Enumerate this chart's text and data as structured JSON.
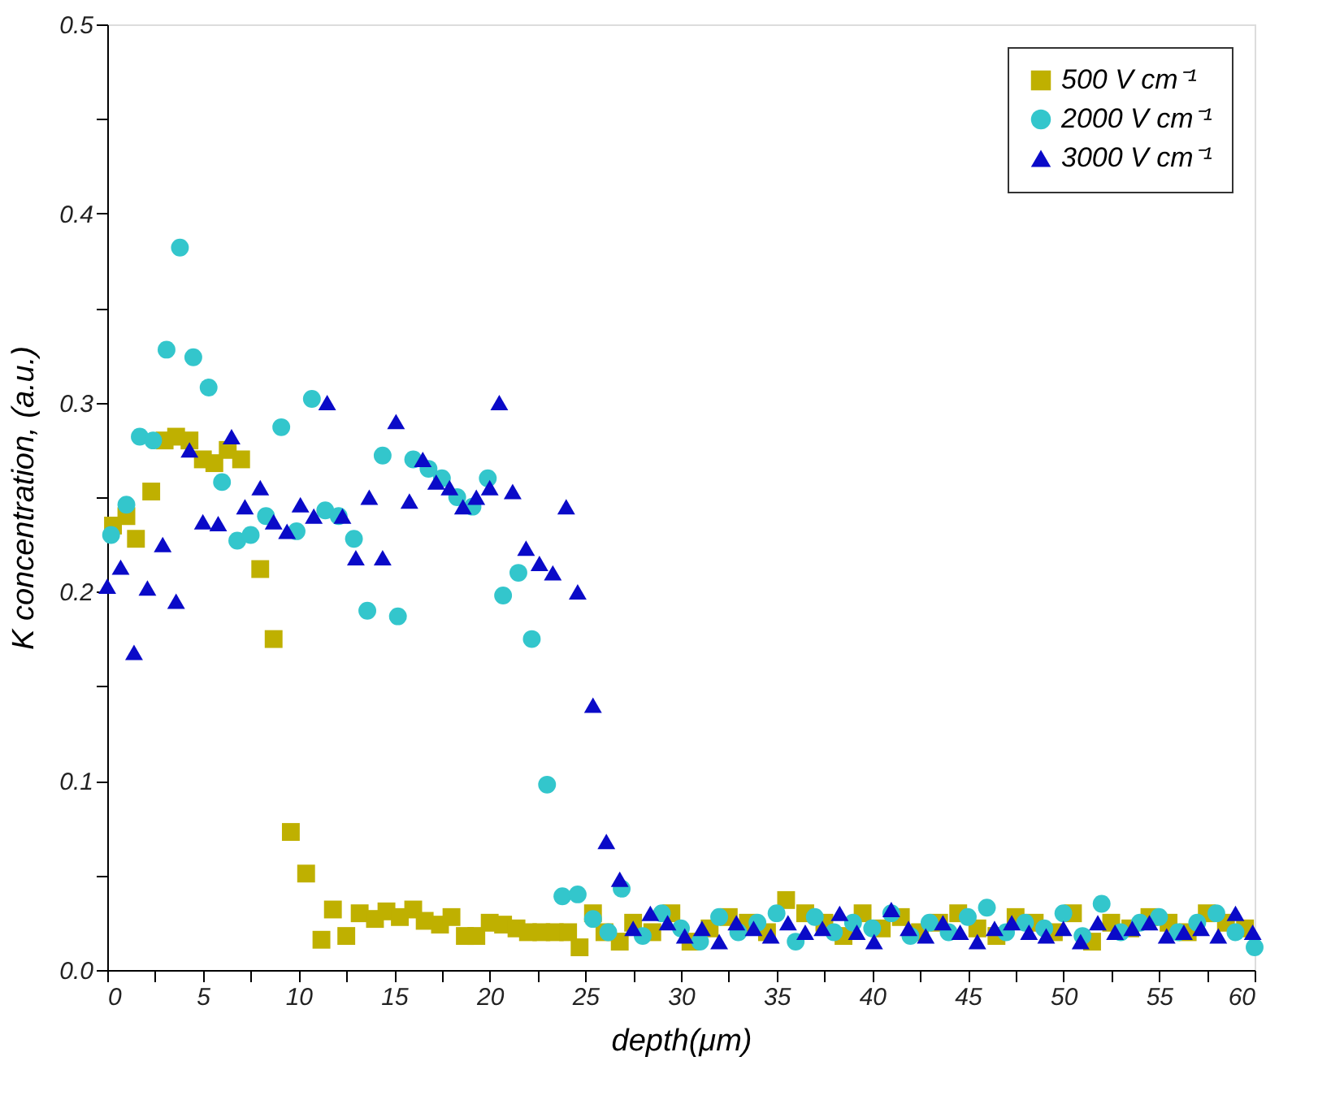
{
  "chart_data": {
    "type": "scatter",
    "xlabel": "depth(μm)",
    "ylabel": "K concentration, (a.u.)",
    "xlim": [
      0,
      60
    ],
    "ylim": [
      0,
      0.5
    ],
    "xticks": [
      0,
      {
        "value": 2.5,
        "label": null
      },
      5,
      {
        "value": 7.5,
        "label": null
      },
      10,
      {
        "value": 12.5,
        "label": null
      },
      15,
      {
        "value": 17.5,
        "label": null
      },
      20,
      {
        "value": 22.5,
        "label": null
      },
      25,
      {
        "value": 27.5,
        "label": null
      },
      30,
      {
        "value": 32.5,
        "label": null
      },
      35,
      {
        "value": 37.5,
        "label": null
      },
      40,
      {
        "value": 42.5,
        "label": null
      },
      45,
      {
        "value": 47.5,
        "label": null
      },
      50,
      {
        "value": 52.5,
        "label": null
      },
      55,
      {
        "value": 57.5,
        "label": null
      },
      60
    ],
    "yticks": [
      {
        "value": 0,
        "label": "0.0"
      },
      {
        "value": 0.05,
        "label": null
      },
      0.1,
      {
        "value": 0.15,
        "label": null
      },
      0.2,
      {
        "value": 0.25,
        "label": null
      },
      0.3,
      {
        "value": 0.35,
        "label": null
      },
      0.4,
      {
        "value": 0.45,
        "label": null
      },
      0.5
    ],
    "grid": false,
    "legend": "top right",
    "series": [
      {
        "name": "500   V cm⁻¹",
        "color": "#bfb000",
        "marker": "square",
        "x": [
          0.3,
          1.0,
          1.5,
          2.3,
          3.0,
          3.6,
          4.3,
          5.0,
          5.6,
          6.3,
          7.0,
          8.0,
          8.7,
          9.6,
          10.4,
          11.2,
          11.8,
          12.5,
          13.2,
          14.0,
          14.6,
          15.3,
          16.0,
          16.6,
          17.4,
          18.0,
          18.7,
          19.3,
          20.0,
          20.7,
          21.4,
          22.0,
          22.7,
          23.4,
          24.1,
          24.7,
          25.4,
          26.0,
          26.8,
          27.5,
          28.5,
          29.5,
          30.5,
          31.5,
          32.5,
          33.5,
          34.5,
          35.5,
          36.5,
          37.5,
          38.5,
          39.5,
          40.5,
          41.5,
          42.5,
          43.5,
          44.5,
          45.5,
          46.5,
          47.5,
          48.5,
          49.5,
          50.5,
          51.5,
          52.5,
          53.5,
          54.5,
          55.5,
          56.5,
          57.5,
          58.5,
          59.5
        ],
        "values": [
          0.235,
          0.24,
          0.228,
          0.253,
          0.28,
          0.282,
          0.28,
          0.27,
          0.268,
          0.275,
          0.27,
          0.212,
          0.175,
          0.073,
          0.051,
          0.016,
          0.032,
          0.018,
          0.03,
          0.027,
          0.031,
          0.028,
          0.032,
          0.026,
          0.024,
          0.028,
          0.018,
          0.018,
          0.025,
          0.024,
          0.022,
          0.02,
          0.02,
          0.02,
          0.02,
          0.012,
          0.03,
          0.02,
          0.015,
          0.025,
          0.02,
          0.03,
          0.015,
          0.022,
          0.028,
          0.025,
          0.02,
          0.037,
          0.03,
          0.025,
          0.018,
          0.03,
          0.022,
          0.028,
          0.02,
          0.025,
          0.03,
          0.022,
          0.018,
          0.028,
          0.025,
          0.02,
          0.03,
          0.015,
          0.025,
          0.022,
          0.028,
          0.025,
          0.02,
          0.03,
          0.025,
          0.022
        ]
      },
      {
        "name": "2000 V cm⁻¹",
        "color": "#33c6cc",
        "marker": "circle",
        "x": [
          0.2,
          1.0,
          1.7,
          2.4,
          3.1,
          3.8,
          4.5,
          5.3,
          6.0,
          6.8,
          7.5,
          8.3,
          9.1,
          9.9,
          10.7,
          11.4,
          12.1,
          12.9,
          13.6,
          14.4,
          15.2,
          16.0,
          16.8,
          17.5,
          18.3,
          19.1,
          19.9,
          20.7,
          21.5,
          22.2,
          23.0,
          23.8,
          24.6,
          25.4,
          26.2,
          26.9,
          28.0,
          29.0,
          30.0,
          31.0,
          32.0,
          33.0,
          34.0,
          35.0,
          36.0,
          37.0,
          38.0,
          39.0,
          40.0,
          41.0,
          42.0,
          43.0,
          44.0,
          45.0,
          46.0,
          47.0,
          48.0,
          49.0,
          50.0,
          51.0,
          52.0,
          53.0,
          54.0,
          55.0,
          56.0,
          57.0,
          58.0,
          59.0,
          60.0
        ],
        "values": [
          0.23,
          0.246,
          0.282,
          0.28,
          0.328,
          0.382,
          0.324,
          0.308,
          0.258,
          0.227,
          0.23,
          0.24,
          0.287,
          0.232,
          0.302,
          0.243,
          0.24,
          0.228,
          0.19,
          0.272,
          0.187,
          0.27,
          0.265,
          0.26,
          0.25,
          0.245,
          0.26,
          0.198,
          0.21,
          0.175,
          0.098,
          0.039,
          0.04,
          0.027,
          0.02,
          0.043,
          0.018,
          0.03,
          0.022,
          0.015,
          0.028,
          0.02,
          0.025,
          0.03,
          0.015,
          0.028,
          0.02,
          0.025,
          0.022,
          0.03,
          0.018,
          0.025,
          0.02,
          0.028,
          0.033,
          0.02,
          0.025,
          0.022,
          0.03,
          0.018,
          0.035,
          0.02,
          0.025,
          0.028,
          0.02,
          0.025,
          0.03,
          0.02,
          0.012
        ]
      },
      {
        "name": "3000 V cm⁻¹",
        "color": "#0a0ac8",
        "marker": "triangle",
        "x": [
          0.0,
          0.7,
          1.4,
          2.1,
          2.9,
          3.6,
          4.3,
          5.0,
          5.8,
          6.5,
          7.2,
          8.0,
          8.7,
          9.4,
          10.1,
          10.8,
          11.5,
          12.3,
          13.0,
          13.7,
          14.4,
          15.1,
          15.8,
          16.5,
          17.2,
          17.9,
          18.6,
          19.3,
          20.0,
          20.5,
          21.2,
          21.9,
          22.6,
          23.3,
          24.0,
          24.6,
          25.4,
          26.1,
          26.8,
          27.5,
          28.4,
          29.3,
          30.2,
          31.1,
          32.0,
          32.9,
          33.8,
          34.7,
          35.6,
          36.5,
          37.4,
          38.3,
          39.2,
          40.1,
          41.0,
          41.9,
          42.8,
          43.7,
          44.6,
          45.5,
          46.4,
          47.3,
          48.2,
          49.1,
          50.0,
          50.9,
          51.8,
          52.7,
          53.6,
          54.5,
          55.4,
          56.3,
          57.2,
          58.1,
          59.0,
          59.9
        ],
        "values": [
          0.203,
          0.213,
          0.168,
          0.202,
          0.225,
          0.195,
          0.275,
          0.237,
          0.236,
          0.282,
          0.245,
          0.255,
          0.237,
          0.232,
          0.246,
          0.24,
          0.3,
          0.24,
          0.218,
          0.25,
          0.218,
          0.29,
          0.248,
          0.27,
          0.258,
          0.255,
          0.245,
          0.25,
          0.255,
          0.3,
          0.253,
          0.223,
          0.215,
          0.21,
          0.245,
          0.2,
          0.14,
          0.068,
          0.048,
          0.022,
          0.03,
          0.025,
          0.018,
          0.022,
          0.015,
          0.025,
          0.022,
          0.018,
          0.025,
          0.02,
          0.022,
          0.03,
          0.02,
          0.015,
          0.032,
          0.022,
          0.018,
          0.025,
          0.02,
          0.015,
          0.022,
          0.025,
          0.02,
          0.018,
          0.022,
          0.015,
          0.025,
          0.02,
          0.022,
          0.025,
          0.018,
          0.02,
          0.022,
          0.018,
          0.03,
          0.02
        ]
      }
    ]
  }
}
